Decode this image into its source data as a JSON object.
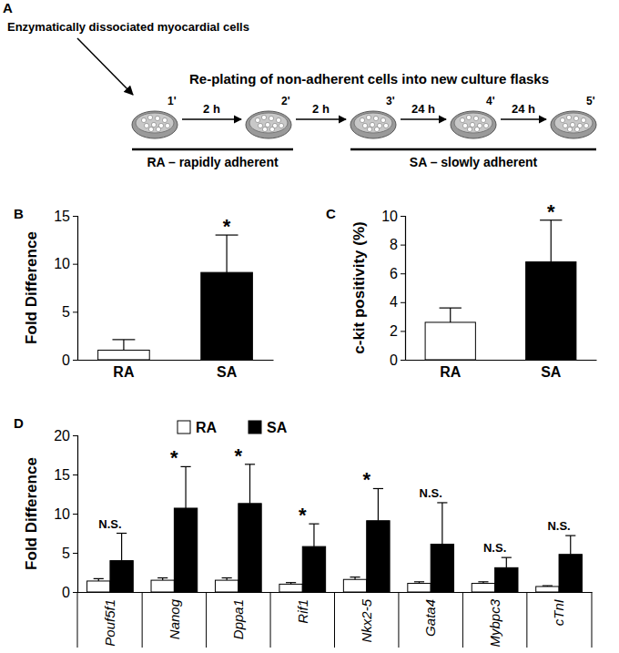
{
  "diagram": {
    "label": "A",
    "source": "Enzymatically dissociated myocardial cells",
    "title": "Re-plating of non-adherent cells into new culture flasks",
    "dishes": [
      "1'",
      "2'",
      "3'",
      "4'",
      "5'"
    ],
    "steps": [
      "2 h",
      "2 h",
      "24 h",
      "24 h"
    ],
    "groups": [
      "RA – rapidly adherent",
      "SA – slowly adherent"
    ]
  },
  "chart_data": [
    {
      "label": "B",
      "type": "bar",
      "categories": [
        "RA",
        "SA"
      ],
      "values": [
        1.0,
        9.1
      ],
      "errors": [
        1.1,
        3.9
      ],
      "colors": [
        "#ffffff",
        "#000000"
      ],
      "significance": [
        null,
        "*"
      ],
      "ylabel": "Fold Difference",
      "ylim": [
        0,
        15
      ],
      "yticks": [
        0,
        5,
        10,
        15
      ],
      "grid": false
    },
    {
      "label": "C",
      "type": "bar",
      "categories": [
        "RA",
        "SA"
      ],
      "values": [
        2.6,
        6.8
      ],
      "errors": [
        1.0,
        2.9
      ],
      "colors": [
        "#ffffff",
        "#000000"
      ],
      "significance": [
        null,
        "*"
      ],
      "ylabel": "c-kit positivity (%)",
      "ylim": [
        0,
        10
      ],
      "yticks": [
        0,
        2,
        4,
        6,
        8,
        10
      ],
      "grid": false
    },
    {
      "label": "D",
      "type": "bar",
      "categories": [
        "Pouf5f1",
        "Nanog",
        "Dppa1",
        "Rif1",
        "Nkx2-5",
        "Gata4",
        "Mybpc3",
        "cTnI"
      ],
      "series": [
        {
          "name": "RA",
          "color": "#ffffff",
          "values": [
            1.4,
            1.5,
            1.5,
            1.0,
            1.6,
            1.1,
            1.1,
            0.7
          ],
          "errors": [
            0.3,
            0.3,
            0.3,
            0.2,
            0.3,
            0.2,
            0.2,
            0.1
          ]
        },
        {
          "name": "SA",
          "color": "#000000",
          "values": [
            4.0,
            10.7,
            11.3,
            5.8,
            9.1,
            6.1,
            3.1,
            4.8
          ],
          "errors": [
            3.5,
            5.3,
            5.0,
            2.9,
            4.1,
            5.3,
            1.3,
            2.4
          ]
        }
      ],
      "significance": [
        "N.S.",
        "*",
        "*",
        "*",
        "*",
        "N.S.",
        "N.S.",
        "N.S."
      ],
      "ylabel": "Fold Difference",
      "ylim": [
        0,
        20
      ],
      "yticks": [
        0,
        5,
        10,
        15,
        20
      ],
      "legend": "top",
      "grid": false
    }
  ]
}
